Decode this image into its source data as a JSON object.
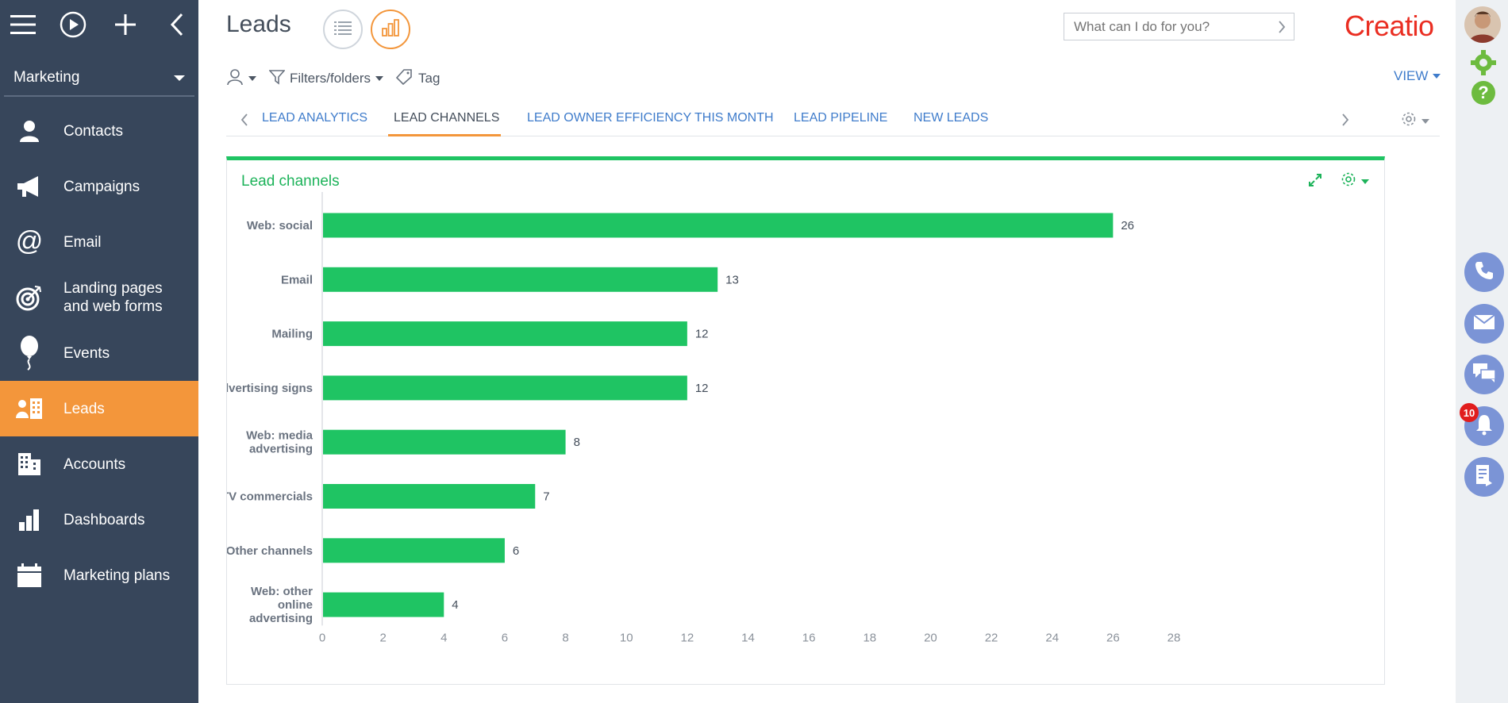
{
  "sidebar": {
    "workspace": "Marketing",
    "items": [
      {
        "label": "Contacts",
        "icon": "contact-icon",
        "active": false
      },
      {
        "label": "Campaigns",
        "icon": "megaphone-icon",
        "active": false
      },
      {
        "label": "Email",
        "icon": "at-sign-icon",
        "active": false
      },
      {
        "label": "Landing pages\nand web forms",
        "icon": "target-icon",
        "active": false
      },
      {
        "label": "Events",
        "icon": "balloon-icon",
        "active": false
      },
      {
        "label": "Leads",
        "icon": "leads-icon",
        "active": true
      },
      {
        "label": "Accounts",
        "icon": "building-icon",
        "active": false
      },
      {
        "label": "Dashboards",
        "icon": "bar-chart-icon",
        "active": false
      },
      {
        "label": "Marketing plans",
        "icon": "calendar-icon",
        "active": false
      }
    ]
  },
  "header": {
    "title": "Leads",
    "search_placeholder": "What can I do for you?",
    "logo": "Creatio",
    "view_label": "VIEW"
  },
  "filters": {
    "filters_folders": "Filters/folders",
    "tag": "Tag"
  },
  "tabs": [
    {
      "label": "LEAD ANALYTICS",
      "active": false
    },
    {
      "label": "LEAD CHANNELS",
      "active": true
    },
    {
      "label": "LEAD OWNER EFFICIENCY THIS MONTH",
      "active": false
    },
    {
      "label": "LEAD PIPELINE",
      "active": false
    },
    {
      "label": "NEW LEADS",
      "active": false
    }
  ],
  "card": {
    "title": "Lead channels"
  },
  "chart_data": {
    "type": "bar",
    "orientation": "horizontal",
    "title": "Lead channels",
    "categories": [
      "Web: social",
      "Email",
      "Mailing",
      "Advertising signs",
      "Web: media advertising",
      "TV commercials",
      "Other channels",
      "Web: other online advertising"
    ],
    "values": [
      26,
      13,
      12,
      12,
      8,
      7,
      6,
      4
    ],
    "xlim": [
      0,
      28
    ],
    "xticks": [
      0,
      2,
      4,
      6,
      8,
      10,
      12,
      14,
      16,
      18,
      20,
      22,
      24,
      26,
      28
    ],
    "bar_color": "#1fc463",
    "grid": false
  },
  "rail": {
    "notification_count": "10"
  },
  "colors": {
    "sidebar_bg": "#37465b",
    "accent_orange": "#f3963b",
    "link_blue": "#3f7ccb",
    "chart_green": "#1fc463",
    "rail_button": "#7b94d6"
  }
}
